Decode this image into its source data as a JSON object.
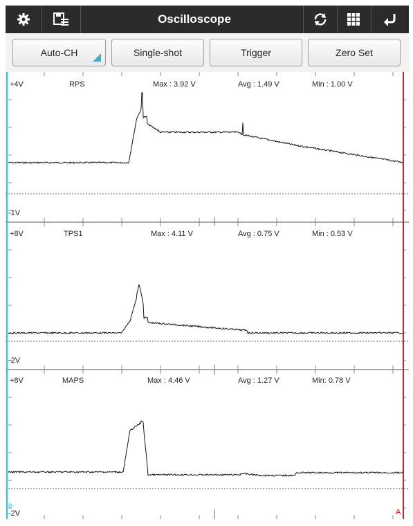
{
  "toolbar": {
    "title": "Oscilloscope",
    "icons": [
      "gear-icon",
      "save-list-icon",
      "refresh-icon",
      "grid-icon",
      "back-icon"
    ]
  },
  "modes": {
    "auto_ch": "Auto-CH",
    "single_shot": "Single-shot",
    "trigger": "Trigger",
    "zero_set": "Zero Set"
  },
  "channels": [
    {
      "top_label": "+4V",
      "name": "RPS",
      "max": "Max : 3.92 V",
      "avg": "Avg : 1.49 V",
      "min": "Min : 1.00 V",
      "bottom_label": "-1V"
    },
    {
      "top_label": "+8V",
      "name": "TPS1",
      "max": "Max : 4.11 V",
      "avg": "Avg : 0.75 V",
      "min": "Min : 0.53 V",
      "bottom_label": "-2V"
    },
    {
      "top_label": "+8V",
      "name": "MAPS",
      "max": "Max : 4.46 V",
      "avg": "Avg : 1.27 V",
      "min": "Min: 0.78 V",
      "bottom_label": "-2V"
    }
  ],
  "cursors": {
    "left_label": "B",
    "right_label": "A"
  },
  "colors": {
    "toolbar": "#2b2b2b",
    "accent": "#4aa8c8",
    "cursor_left": "#35c6e8",
    "cursor_right": "#e01818",
    "trace": "#111111"
  }
}
